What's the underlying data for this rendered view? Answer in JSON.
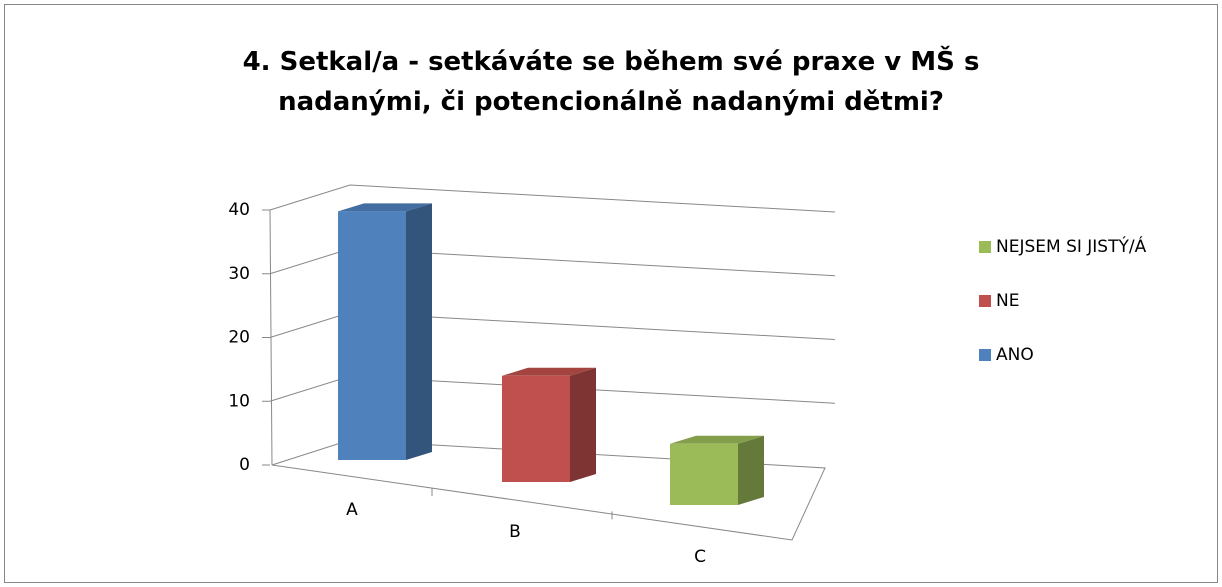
{
  "chart_data": {
    "type": "bar3d",
    "title": "4.  Setkal/a - setkáváte se během své praxe v MŠ s nadanými, či potencionálně nadanými dětmi?",
    "categories": [
      "A",
      "B",
      "C"
    ],
    "series": [
      {
        "name": "ANO",
        "color": "#4f81bd",
        "values": [
          39,
          null,
          null
        ]
      },
      {
        "name": "NE",
        "color": "#c0504d",
        "values": [
          null,
          17,
          null
        ]
      },
      {
        "name": "NEJSEM SI JISTÝ/Á",
        "color": "#9bbb59",
        "values": [
          null,
          null,
          10
        ]
      }
    ],
    "ylim": [
      0,
      40
    ],
    "yticks": [
      0,
      10,
      20,
      30,
      40
    ],
    "grid": true,
    "legend": "right"
  }
}
